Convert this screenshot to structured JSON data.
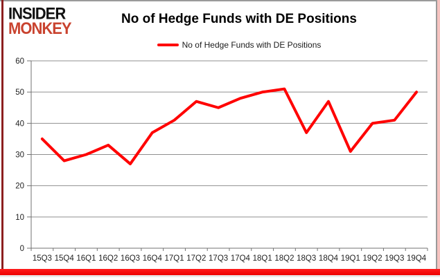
{
  "branding": {
    "line1": "INSIDER",
    "line2": "MONKEY"
  },
  "header": {
    "title": "No of Hedge Funds with DE Positions"
  },
  "legend": {
    "label": "No of Hedge Funds with DE Positions"
  },
  "chart_data": {
    "type": "line",
    "title": "No of Hedge Funds with DE Positions",
    "categories": [
      "15Q3",
      "15Q4",
      "16Q1",
      "16Q2",
      "16Q3",
      "16Q4",
      "17Q1",
      "17Q2",
      "17Q3",
      "17Q4",
      "18Q1",
      "18Q2",
      "18Q3",
      "18Q4",
      "19Q1",
      "19Q2",
      "19Q3",
      "19Q4"
    ],
    "series": [
      {
        "name": "No of Hedge Funds with DE Positions",
        "color": "#ff0000",
        "values": [
          35,
          28,
          30,
          33,
          27,
          37,
          41,
          47,
          45,
          48,
          50,
          51,
          37,
          47,
          31,
          40,
          41,
          50
        ]
      }
    ],
    "xlabel": "",
    "ylabel": "",
    "ylim": [
      0,
      60
    ],
    "ytick_step": 10,
    "yticks": [
      0,
      10,
      20,
      30,
      40,
      50,
      60
    ],
    "grid": true,
    "legend_position": "top"
  },
  "colors": {
    "line_red": "#ff0000",
    "logo_red": "#c9432f",
    "grid_gray": "#8f8f8f",
    "axis_gray": "#707070",
    "text_dark": "#1f1f1f",
    "border_maroon": "#8c1f1f",
    "border_pink": "#f6c3c0",
    "bottom_bar_red": "#f40000"
  }
}
